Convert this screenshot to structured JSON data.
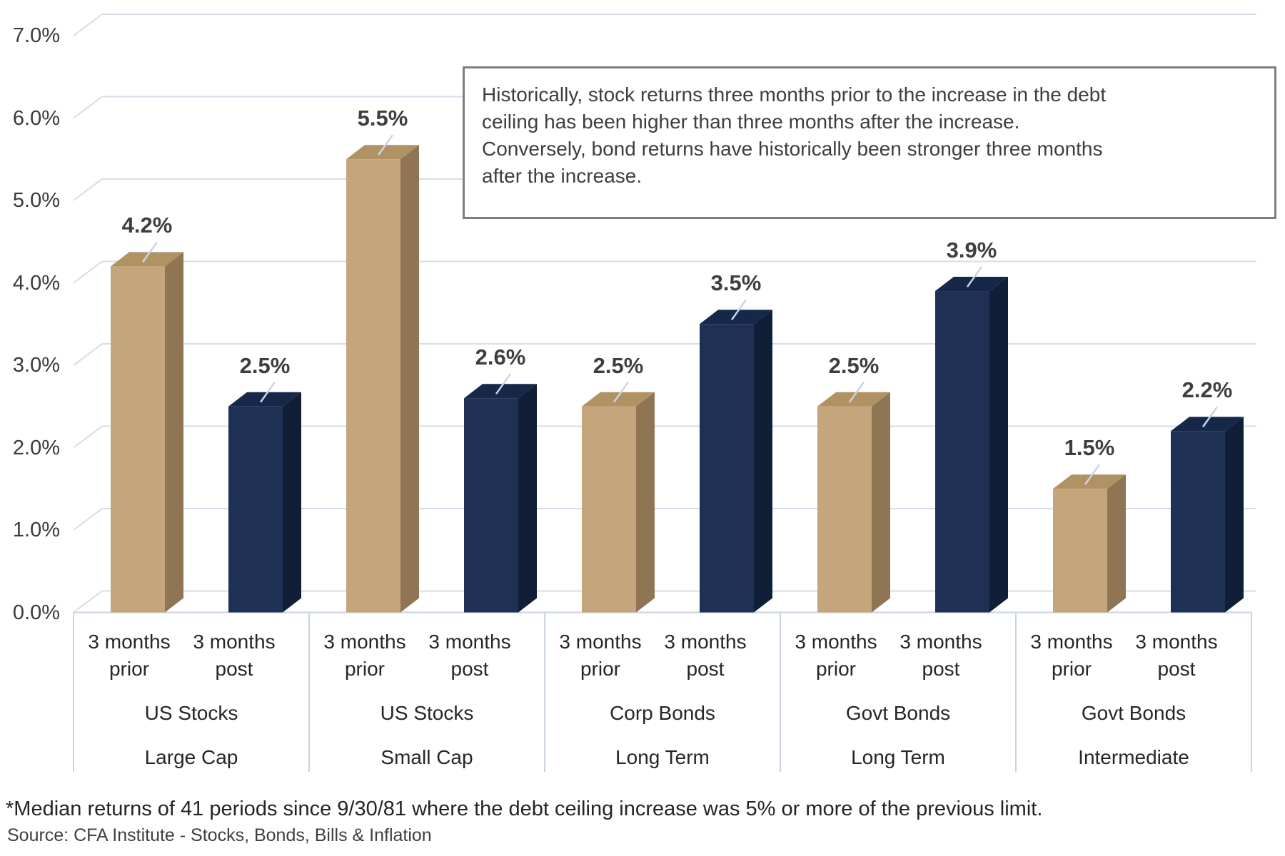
{
  "annotation": {
    "text": "Historically, stock returns three months prior to the increase in the debt ceiling has been higher than three months after the increase. Conversely, bond returns have historically been stronger three months after the increase."
  },
  "footnote": "*Median returns of 41 periods since 9/30/81 where the debt ceiling increase was 5% or more of the previous limit.",
  "source": "Source: CFA Institute - Stocks, Bonds, Bills & Inflation",
  "colors": {
    "prior_front": "#C5A57C",
    "prior_top": "#B09263",
    "prior_side": "#8F7554",
    "post_front": "#1E3054",
    "post_top": "#16284A",
    "post_side": "#101E38",
    "gridline": "#D5DDE8",
    "area_border": "#C9D3E1",
    "leader": "#C9D6E6",
    "box_border": "#7E7E7E"
  },
  "chart_data": {
    "type": "bar",
    "projection": "3d",
    "title": "",
    "xlabel": "",
    "ylabel": "",
    "ylim": [
      0,
      7
    ],
    "grid": true,
    "y_ticks": [
      "0.0%",
      "1.0%",
      "2.0%",
      "3.0%",
      "4.0%",
      "5.0%",
      "6.0%",
      "7.0%"
    ],
    "bar_sublabels": [
      [
        "3 months",
        "prior"
      ],
      [
        "3 months",
        "post"
      ]
    ],
    "categories": [
      {
        "asset": "US Stocks",
        "segment": "Large Cap"
      },
      {
        "asset": "US Stocks",
        "segment": "Small Cap"
      },
      {
        "asset": "Corp Bonds",
        "segment": "Long Term"
      },
      {
        "asset": "Govt Bonds",
        "segment": "Long Term"
      },
      {
        "asset": "Govt Bonds",
        "segment": "Intermediate"
      }
    ],
    "series": [
      {
        "name": "3 months prior",
        "values": [
          4.2,
          5.5,
          2.5,
          2.5,
          1.5
        ],
        "labels": [
          "4.2%",
          "5.5%",
          "2.5%",
          "2.5%",
          "1.5%"
        ]
      },
      {
        "name": "3 months post",
        "values": [
          2.5,
          2.6,
          3.5,
          3.9,
          2.2
        ],
        "labels": [
          "2.5%",
          "2.6%",
          "3.5%",
          "3.9%",
          "2.2%"
        ]
      }
    ]
  }
}
